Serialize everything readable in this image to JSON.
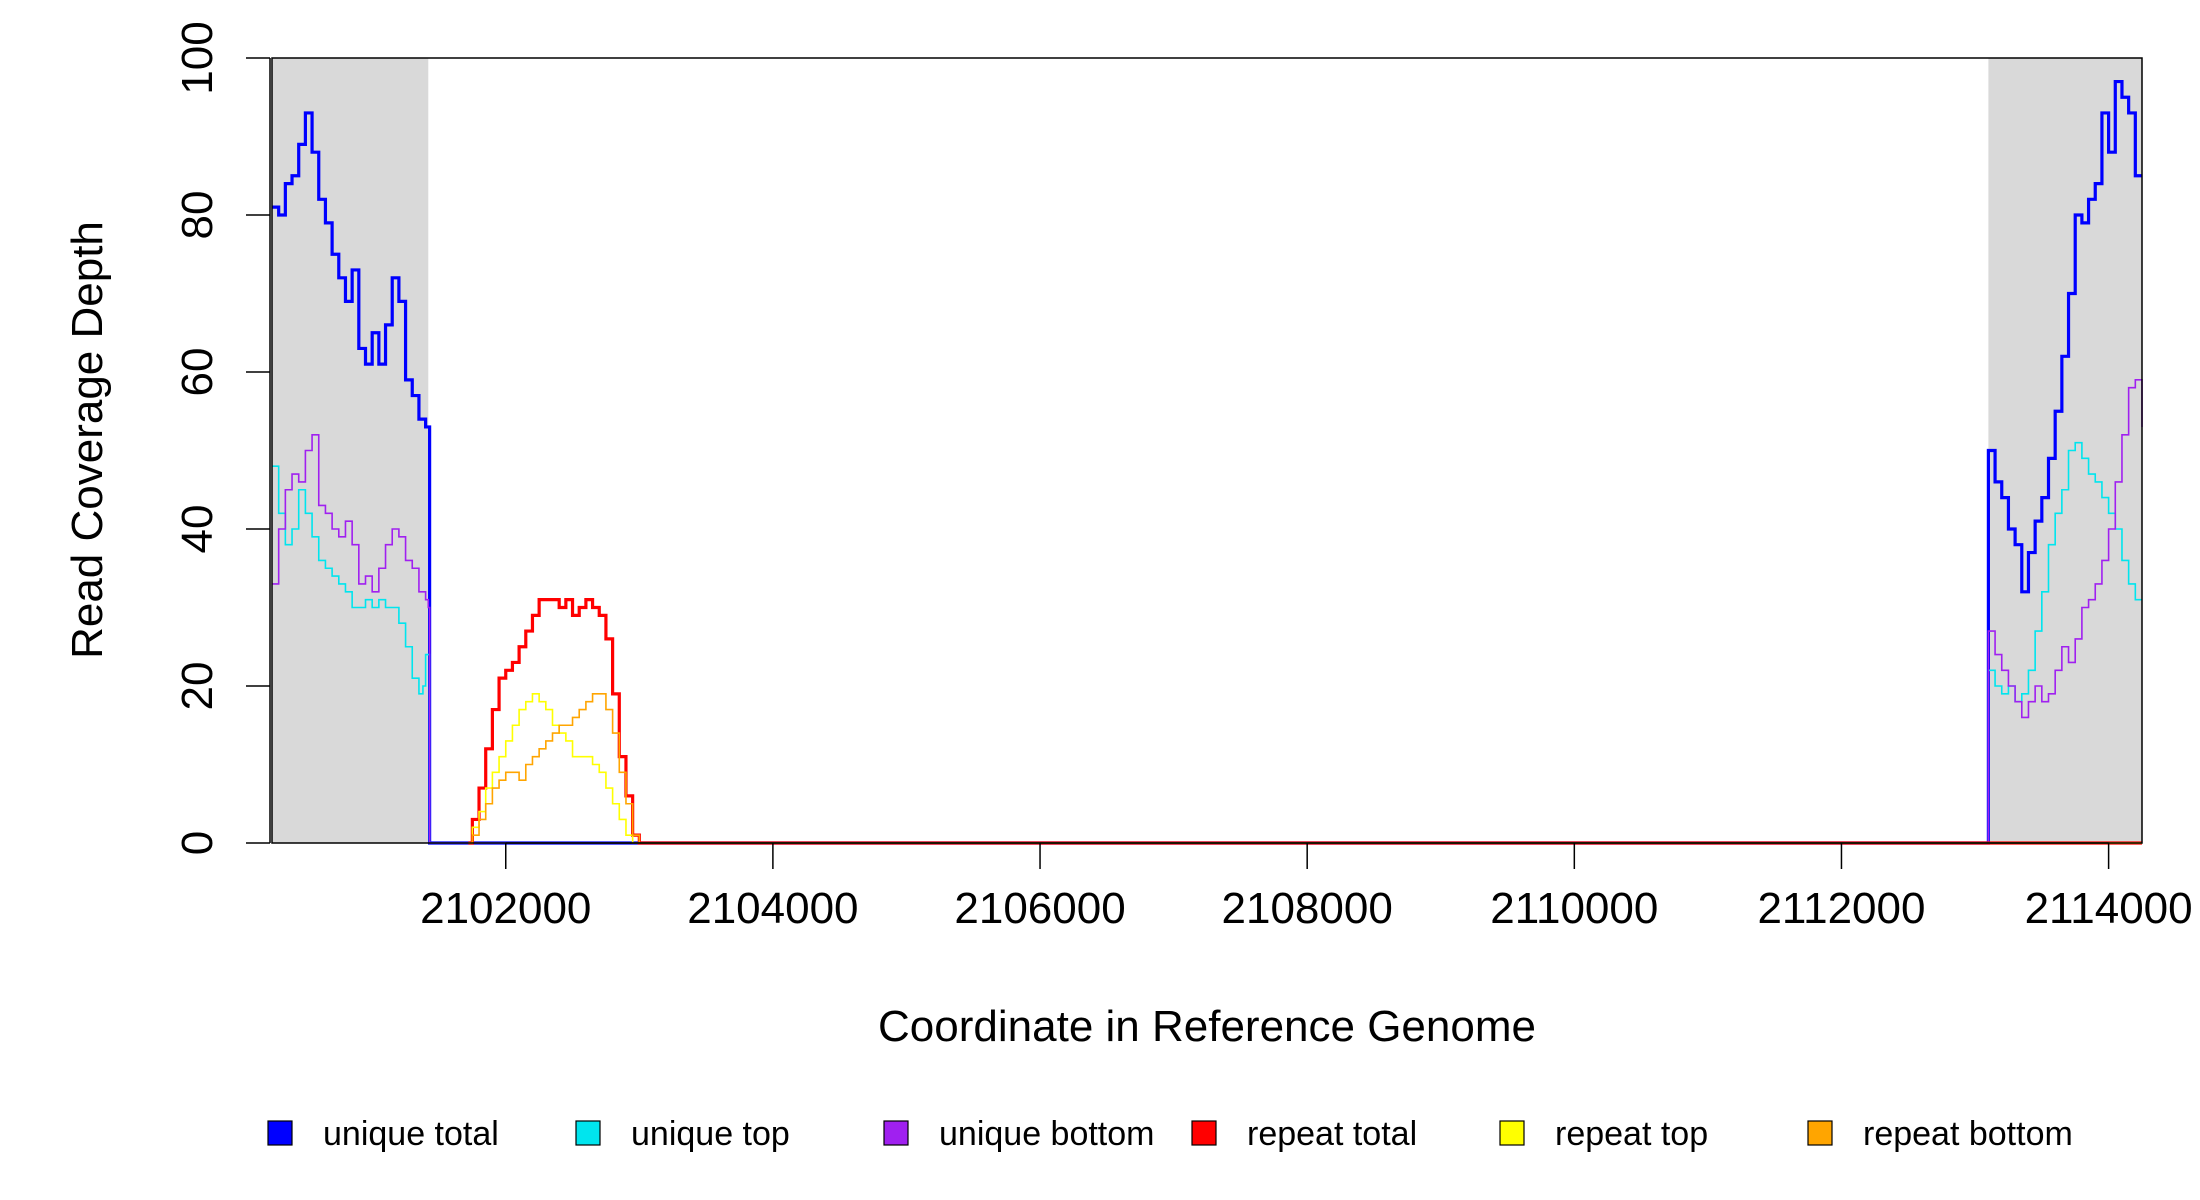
{
  "chart_data": {
    "type": "line",
    "xlabel": "Coordinate in Reference Genome",
    "ylabel": "Read Coverage Depth",
    "xlim": [
      2100250,
      2114250
    ],
    "ylim": [
      0,
      100
    ],
    "x_ticks": [
      2102000,
      2104000,
      2106000,
      2108000,
      2110000,
      2112000,
      2114000
    ],
    "x_tick_labels": [
      "2102000",
      "2104000",
      "2106000",
      "2108000",
      "2110000",
      "2112000",
      "2114000"
    ],
    "y_ticks": [
      0,
      20,
      40,
      60,
      80,
      100
    ],
    "y_tick_labels": [
      "0",
      "20",
      "40",
      "60",
      "80",
      "100"
    ],
    "grid": false,
    "legend_position": "bottom",
    "shaded_regions": [
      {
        "x": [
          2100250,
          2101420
        ],
        "color": "#d9d9d9"
      },
      {
        "x": [
          2113100,
          2114250
        ],
        "color": "#d9d9d9"
      }
    ],
    "series": [
      {
        "name": "unique total",
        "color": "#0000ff",
        "width": 3.2,
        "x": [
          2100250,
          2100300,
          2100350,
          2100400,
          2100450,
          2100500,
          2100550,
          2100600,
          2100650,
          2100700,
          2100750,
          2100800,
          2100850,
          2100900,
          2100950,
          2101000,
          2101050,
          2101100,
          2101150,
          2101200,
          2101250,
          2101300,
          2101350,
          2101400,
          2101420,
          2101430,
          2103000,
          2113090,
          2113100,
          2113150,
          2113200,
          2113250,
          2113300,
          2113350,
          2113400,
          2113450,
          2113500,
          2113550,
          2113600,
          2113650,
          2113700,
          2113750,
          2113800,
          2113850,
          2113900,
          2113950,
          2114000,
          2114050,
          2114100,
          2114150,
          2114200,
          2114250
        ],
        "y": [
          81,
          80,
          84,
          85,
          89,
          93,
          88,
          82,
          79,
          75,
          72,
          69,
          73,
          63,
          61,
          65,
          61,
          66,
          72,
          69,
          59,
          57,
          54,
          53,
          53,
          0,
          0,
          0,
          50,
          46,
          44,
          40,
          38,
          32,
          37,
          41,
          44,
          49,
          55,
          62,
          70,
          80,
          79,
          82,
          84,
          93,
          88,
          97,
          95,
          93,
          85,
          85
        ]
      },
      {
        "name": "unique top",
        "color": "#00e5ee",
        "width": 1.6,
        "x": [
          2100250,
          2100300,
          2100350,
          2100400,
          2100450,
          2100500,
          2100550,
          2100600,
          2100650,
          2100700,
          2100750,
          2100800,
          2100850,
          2100900,
          2100950,
          2101000,
          2101050,
          2101100,
          2101150,
          2101200,
          2101250,
          2101300,
          2101350,
          2101380,
          2101400,
          2101420,
          2101430,
          2103000,
          2113090,
          2113100,
          2113150,
          2113200,
          2113250,
          2113300,
          2113350,
          2113400,
          2113450,
          2113500,
          2113550,
          2113600,
          2113650,
          2113700,
          2113750,
          2113800,
          2113850,
          2113900,
          2113950,
          2114000,
          2114050,
          2114100,
          2114150,
          2114200,
          2114250
        ],
        "y": [
          48,
          42,
          38,
          40,
          45,
          42,
          39,
          36,
          35,
          34,
          33,
          32,
          30,
          30,
          31,
          30,
          31,
          30,
          30,
          28,
          25,
          21,
          19,
          20,
          24,
          24,
          0,
          0,
          0,
          22,
          20,
          19,
          20,
          18,
          19,
          22,
          27,
          32,
          38,
          42,
          45,
          50,
          51,
          49,
          47,
          46,
          44,
          42,
          40,
          36,
          33,
          31,
          31
        ]
      },
      {
        "name": "unique bottom",
        "color": "#a020f0",
        "width": 1.6,
        "x": [
          2100250,
          2100300,
          2100350,
          2100400,
          2100450,
          2100500,
          2100550,
          2100600,
          2100650,
          2100700,
          2100750,
          2100800,
          2100850,
          2100900,
          2100950,
          2101000,
          2101050,
          2101100,
          2101150,
          2101200,
          2101250,
          2101300,
          2101350,
          2101400,
          2101420,
          2101430,
          2103000,
          2113090,
          2113100,
          2113150,
          2113200,
          2113250,
          2113300,
          2113350,
          2113400,
          2113450,
          2113500,
          2113550,
          2113600,
          2113650,
          2113700,
          2113750,
          2113800,
          2113850,
          2113900,
          2113950,
          2114000,
          2114050,
          2114100,
          2114150,
          2114200,
          2114250
        ],
        "y": [
          33,
          40,
          45,
          47,
          46,
          50,
          52,
          43,
          42,
          40,
          39,
          41,
          38,
          33,
          34,
          32,
          35,
          38,
          40,
          39,
          36,
          35,
          32,
          31,
          30,
          0,
          0,
          0,
          27,
          24,
          22,
          20,
          18,
          16,
          18,
          20,
          18,
          19,
          22,
          25,
          23,
          26,
          30,
          31,
          33,
          36,
          40,
          46,
          52,
          58,
          59,
          53
        ]
      },
      {
        "name": "repeat total",
        "color": "#ff0000",
        "width": 3.2,
        "x": [
          2101720,
          2101750,
          2101800,
          2101850,
          2101900,
          2101950,
          2102000,
          2102050,
          2102100,
          2102150,
          2102200,
          2102250,
          2102300,
          2102350,
          2102400,
          2102450,
          2102500,
          2102550,
          2102600,
          2102650,
          2102700,
          2102750,
          2102800,
          2102850,
          2102900,
          2102950,
          2103000,
          2114250
        ],
        "y": [
          0,
          3,
          7,
          12,
          17,
          21,
          22,
          23,
          25,
          27,
          29,
          31,
          31,
          31,
          30,
          31,
          29,
          30,
          31,
          30,
          29,
          26,
          19,
          11,
          6,
          1,
          0,
          0
        ]
      },
      {
        "name": "repeat top",
        "color": "#ffff00",
        "width": 1.6,
        "x": [
          2101720,
          2101750,
          2101800,
          2101850,
          2101900,
          2101950,
          2102000,
          2102050,
          2102100,
          2102150,
          2102200,
          2102250,
          2102300,
          2102350,
          2102400,
          2102450,
          2102500,
          2102550,
          2102600,
          2102650,
          2102700,
          2102750,
          2102800,
          2102850,
          2102900,
          2102950,
          2103000,
          2114250
        ],
        "y": [
          0,
          2,
          4,
          7,
          9,
          11,
          13,
          15,
          17,
          18,
          19,
          18,
          17,
          15,
          14,
          13,
          11,
          11,
          11,
          10,
          9,
          7,
          5,
          3,
          1,
          0,
          0,
          0
        ]
      },
      {
        "name": "repeat bottom",
        "color": "#ffa500",
        "width": 1.6,
        "x": [
          2101720,
          2101750,
          2101800,
          2101850,
          2101900,
          2101950,
          2102000,
          2102050,
          2102100,
          2102150,
          2102200,
          2102250,
          2102300,
          2102350,
          2102400,
          2102450,
          2102500,
          2102550,
          2102600,
          2102650,
          2102700,
          2102750,
          2102800,
          2102850,
          2102900,
          2102950,
          2103000,
          2114250
        ],
        "y": [
          0,
          1,
          3,
          5,
          7,
          8,
          9,
          9,
          8,
          10,
          11,
          12,
          13,
          14,
          15,
          15,
          16,
          17,
          18,
          19,
          19,
          17,
          14,
          9,
          5,
          1,
          0,
          0
        ]
      }
    ]
  }
}
